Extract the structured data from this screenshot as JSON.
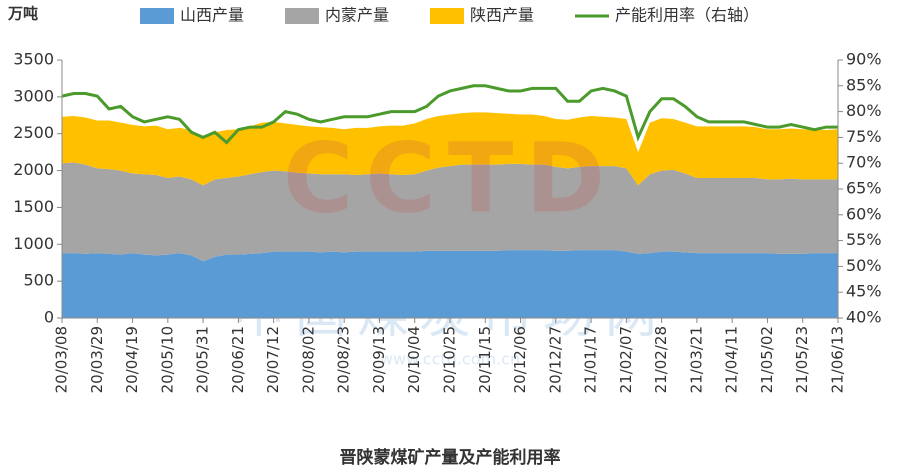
{
  "chart_data": {
    "type": "area",
    "title": "晋陕蒙煤矿产量及产能利用率",
    "y_label": "万吨",
    "watermark": {
      "logo": "CCTD",
      "name": "中国煤炭市场网",
      "url": "www.cctd.com.cn"
    },
    "categories": [
      "20/03/08",
      null,
      null,
      "20/03/29",
      null,
      null,
      "20/04/19",
      null,
      null,
      "20/05/10",
      null,
      null,
      "20/05/31",
      null,
      null,
      "20/06/21",
      null,
      null,
      "20/07/12",
      null,
      null,
      "20/08/02",
      null,
      null,
      "20/08/23",
      null,
      null,
      "20/09/13",
      null,
      null,
      "20/10/04",
      null,
      null,
      "20/10/25",
      null,
      null,
      "20/11/15",
      null,
      null,
      "20/12/06",
      null,
      null,
      "20/12/27",
      null,
      null,
      "21/01/17",
      null,
      null,
      "21/02/07",
      null,
      null,
      "21/02/28",
      null,
      null,
      "21/03/21",
      null,
      null,
      "21/04/11",
      null,
      null,
      "21/05/02",
      null,
      null,
      "21/05/23",
      null,
      null,
      "21/06/13"
    ],
    "series": [
      {
        "name": "山西产量",
        "type": "area",
        "color": "#5b9bd5",
        "values": [
          880,
          880,
          870,
          880,
          870,
          860,
          880,
          860,
          850,
          860,
          880,
          850,
          770,
          830,
          860,
          860,
          870,
          880,
          900,
          900,
          900,
          900,
          890,
          900,
          890,
          900,
          900,
          900,
          900,
          900,
          900,
          910,
          910,
          910,
          910,
          910,
          910,
          910,
          920,
          920,
          920,
          920,
          910,
          910,
          920,
          920,
          920,
          920,
          900,
          870,
          880,
          900,
          900,
          890,
          880,
          880,
          880,
          880,
          880,
          880,
          880,
          870,
          870,
          870,
          880,
          880,
          880
        ]
      },
      {
        "name": "内蒙产量",
        "type": "area",
        "color": "#a5a5a5",
        "values": [
          1220,
          1230,
          1210,
          1150,
          1150,
          1140,
          1080,
          1090,
          1090,
          1040,
          1040,
          1030,
          1030,
          1050,
          1040,
          1060,
          1080,
          1100,
          1100,
          1090,
          1070,
          1060,
          1060,
          1050,
          1060,
          1040,
          1050,
          1060,
          1050,
          1040,
          1050,
          1090,
          1130,
          1150,
          1170,
          1170,
          1170,
          1170,
          1170,
          1170,
          1160,
          1160,
          1140,
          1120,
          1130,
          1140,
          1140,
          1140,
          1130,
          930,
          1070,
          1100,
          1110,
          1070,
          1020,
          1020,
          1020,
          1020,
          1020,
          1020,
          1000,
          1010,
          1020,
          1010,
          1000,
          1000,
          1000
        ]
      },
      {
        "name": "陕西产量",
        "type": "area",
        "color": "#ffc000",
        "values": [
          630,
          630,
          640,
          650,
          660,
          650,
          660,
          650,
          670,
          660,
          660,
          670,
          630,
          640,
          650,
          640,
          650,
          670,
          660,
          650,
          650,
          640,
          640,
          630,
          610,
          640,
          630,
          640,
          660,
          670,
          690,
          700,
          700,
          700,
          700,
          710,
          710,
          700,
          680,
          670,
          680,
          660,
          650,
          660,
          670,
          680,
          670,
          660,
          670,
          450,
          700,
          710,
          690,
          690,
          700,
          700,
          700,
          700,
          700,
          690,
          680,
          680,
          680,
          680,
          670,
          670,
          680
        ]
      },
      {
        "name": "产能利用率（右轴）",
        "type": "line",
        "axis": "y2",
        "color": "#4a9a2c",
        "values": [
          83,
          83.5,
          83.5,
          83,
          80.5,
          81,
          79,
          78,
          78.5,
          79,
          78.5,
          76,
          75,
          76,
          74,
          76.5,
          77,
          77,
          78,
          80,
          79.5,
          78.5,
          78,
          78.5,
          79,
          79,
          79,
          79.5,
          80,
          80,
          80,
          81,
          83,
          84,
          84.5,
          85,
          85,
          84.5,
          84,
          84,
          84.5,
          84.5,
          84.5,
          82,
          82,
          84,
          84.5,
          84,
          83,
          75,
          80,
          82.5,
          82.5,
          81,
          79,
          78,
          78,
          78,
          78,
          77.5,
          77,
          77,
          77.5,
          77,
          76.5,
          77,
          77
        ]
      }
    ],
    "ylim": [
      0,
      3500
    ],
    "yticks": [
      0,
      500,
      1000,
      1500,
      2000,
      2500,
      3000,
      3500
    ],
    "y2lim": [
      40,
      90
    ],
    "y2ticks": [
      {
        "value": 40,
        "label": "40%"
      },
      {
        "value": 45,
        "label": "45%"
      },
      {
        "value": 50,
        "label": "50%"
      },
      {
        "value": 55,
        "label": "55%"
      },
      {
        "value": 60,
        "label": "60%"
      },
      {
        "value": 65,
        "label": "65%"
      },
      {
        "value": 70,
        "label": "70%"
      },
      {
        "value": 75,
        "label": "75%"
      },
      {
        "value": 80,
        "label": "80%"
      },
      {
        "value": 85,
        "label": "85%"
      },
      {
        "value": 90,
        "label": "90%"
      }
    ],
    "grid": false,
    "legend": "top"
  }
}
